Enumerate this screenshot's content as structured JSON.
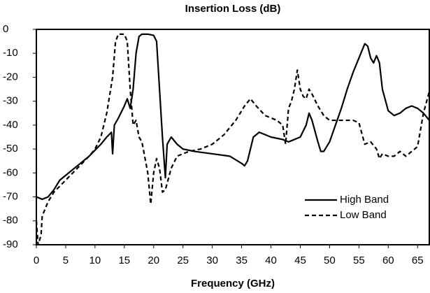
{
  "chart_data": {
    "type": "line",
    "title": "Insertion Loss (dB)",
    "x_label": "Frequency (GHz)",
    "xlim": [
      0,
      67
    ],
    "xticks": [
      0,
      5,
      10,
      15,
      20,
      25,
      30,
      35,
      40,
      45,
      50,
      55,
      60,
      65
    ],
    "ylim": [
      -90,
      0
    ],
    "yticks": [
      0,
      -10,
      -20,
      -30,
      -40,
      -50,
      -60,
      -70,
      -80,
      -90
    ],
    "grid": false,
    "legend": "lower right",
    "series": [
      {
        "name": "High Band",
        "color": "#000000",
        "dash": "solid",
        "x": [
          0,
          1,
          2,
          3,
          4,
          5,
          7,
          9,
          11,
          12,
          12.8,
          13,
          13.3,
          14,
          15,
          15.5,
          16,
          16.5,
          17,
          17.5,
          18,
          19,
          20,
          20.5,
          21,
          21.5,
          22,
          22.3,
          23,
          24,
          25,
          27,
          30,
          33,
          35,
          35.5,
          36,
          37,
          38,
          40,
          42,
          43,
          44,
          45,
          46,
          46.5,
          47,
          48,
          48.5,
          49,
          50,
          51,
          52,
          53,
          54,
          55,
          56,
          56.5,
          57,
          57.5,
          58,
          58.5,
          59,
          60,
          61,
          62,
          63,
          64,
          65,
          66,
          67
        ],
        "values": [
          -70,
          -71,
          -70,
          -67,
          -63,
          -61,
          -57,
          -53,
          -48,
          -45,
          -43,
          -52,
          -40,
          -37,
          -32,
          -29,
          -33,
          -25,
          -10,
          -3,
          -2,
          -2,
          -2.5,
          -5,
          -25,
          -45,
          -62,
          -48,
          -45,
          -48,
          -50,
          -51,
          -52,
          -53,
          -56,
          -57,
          -55,
          -45,
          -43,
          -45,
          -46,
          -47,
          -46,
          -45,
          -40,
          -35,
          -38,
          -47,
          -51,
          -51,
          -47,
          -40,
          -33,
          -25,
          -18,
          -12,
          -6,
          -7,
          -12,
          -14,
          -11,
          -14,
          -25,
          -34,
          -36,
          -35,
          -33,
          -32,
          -33,
          -35,
          -38
        ]
      },
      {
        "name": "Low Band",
        "color": "#000000",
        "dash": "dashed",
        "x": [
          0,
          0.3,
          0.8,
          1,
          2,
          3,
          5,
          7,
          9,
          10,
          11,
          12,
          13,
          13.5,
          14,
          15,
          15.5,
          16,
          16.5,
          17,
          17.5,
          18,
          19,
          19.5,
          20,
          20.5,
          21,
          21.5,
          22,
          23,
          24,
          26,
          28,
          30,
          32,
          34,
          35.5,
          36.5,
          37.5,
          39,
          41,
          42,
          42.5,
          43,
          43.5,
          44,
          44.5,
          45,
          45.5,
          46,
          46.5,
          47,
          48,
          49,
          50,
          52,
          54,
          55,
          56,
          57,
          58,
          58.5,
          59,
          60,
          61,
          62,
          63,
          64,
          65,
          66,
          67
        ],
        "values": [
          -80,
          -90,
          -86,
          -78,
          -72,
          -68,
          -63,
          -58,
          -53,
          -50,
          -45,
          -35,
          -20,
          -5,
          -2,
          -2,
          -5,
          -25,
          -40,
          -38,
          -45,
          -47,
          -60,
          -73,
          -60,
          -54,
          -58,
          -68,
          -67,
          -58,
          -53,
          -51,
          -50,
          -48,
          -44,
          -38,
          -32,
          -29,
          -32,
          -36,
          -38,
          -40,
          -48,
          -33,
          -30,
          -25,
          -17,
          -25,
          -28,
          -29,
          -25,
          -27,
          -32,
          -36,
          -38,
          -38,
          -38,
          -39,
          -48,
          -47,
          -50,
          -54,
          -52,
          -53,
          -53,
          -51,
          -53,
          -51,
          -49,
          -35,
          -26
        ]
      }
    ]
  }
}
